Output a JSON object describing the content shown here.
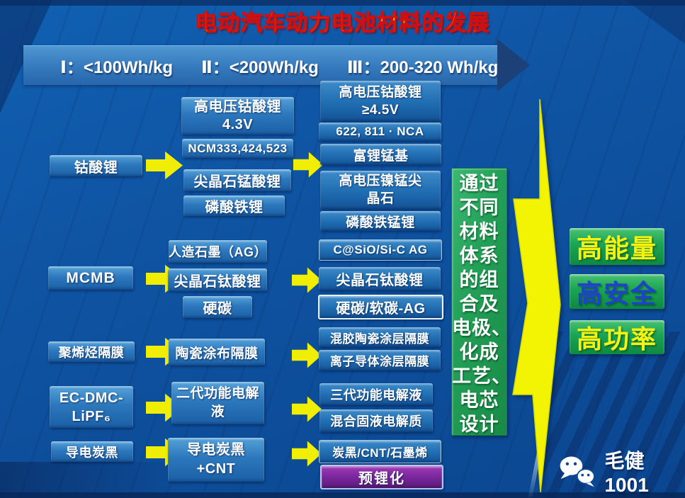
{
  "title": "电动汽车动力电池材料的发展",
  "banner": {
    "items": [
      "Ⅰ：<100Wh/kg",
      "Ⅱ：<200Wh/kg",
      "Ⅲ：200-320 Wh/kg"
    ]
  },
  "col1": {
    "items": [
      {
        "label": "钴酸锂"
      },
      {
        "label": "MCMB"
      },
      {
        "label": "聚烯烃隔膜"
      },
      {
        "lines": [
          "EC-DMC-",
          "LiPF₆"
        ]
      },
      {
        "label": "导电炭黑"
      }
    ]
  },
  "col2": {
    "items": [
      {
        "lines": [
          "高电压钴酸锂",
          "4.3V"
        ]
      },
      {
        "label": "NCM333,424,523"
      },
      {
        "label": "尖晶石锰酸锂"
      },
      {
        "label": "磷酸铁锂"
      },
      {
        "label": "人造石墨（AG）"
      },
      {
        "label": "尖晶石钛酸锂"
      },
      {
        "label": "硬碳"
      },
      {
        "label": "陶瓷涂布隔膜"
      },
      {
        "lines": [
          "二代功能电解",
          "液"
        ]
      },
      {
        "lines": [
          "导电炭黑",
          "+CNT"
        ]
      }
    ]
  },
  "col3": {
    "items": [
      {
        "lines": [
          "高电压钴酸锂",
          "≥4.5V"
        ]
      },
      {
        "label": "622, 811 · NCA"
      },
      {
        "label": "富锂锰基"
      },
      {
        "lines": [
          "高电压镍锰尖",
          "晶石"
        ]
      },
      {
        "label": "磷酸铁锰锂"
      },
      {
        "label": "C@SiO/Si-C AG"
      },
      {
        "label": "尖晶石钛酸锂"
      },
      {
        "label": "硬碳/软碳-AG"
      },
      {
        "label": "混胶陶瓷涂层隔膜"
      },
      {
        "label": "离子导体涂层隔膜"
      },
      {
        "label": "三代功能电解液"
      },
      {
        "label": "混合固液电解质"
      },
      {
        "label": "炭黑/CNT/石墨烯"
      },
      {
        "label": "预锂化"
      }
    ]
  },
  "note": {
    "lines": [
      "通过",
      "不同",
      "材料",
      "体系",
      "的组",
      "合及",
      "电极、",
      "化成",
      "工艺、",
      "电芯",
      "设计"
    ]
  },
  "outcomes": [
    {
      "label": "高能量",
      "text_color": "#f6f312"
    },
    {
      "label": "高安全",
      "text_color": "#1f41cf"
    },
    {
      "label": "高功率",
      "text_color": "#f6f312"
    }
  ],
  "watermark": {
    "name": "毛健1001"
  },
  "colors": {
    "background_blue": "#0f55a4",
    "title_text": "#f2ee22",
    "title_outline": "#d01010",
    "box_blue": "#2d78bd",
    "box_purple": "#7d28a0",
    "note_green": "#23a058",
    "outcome_green": "#1aa452",
    "arrow_yellow": "#f2f404",
    "banner_text": "#ffffff"
  }
}
